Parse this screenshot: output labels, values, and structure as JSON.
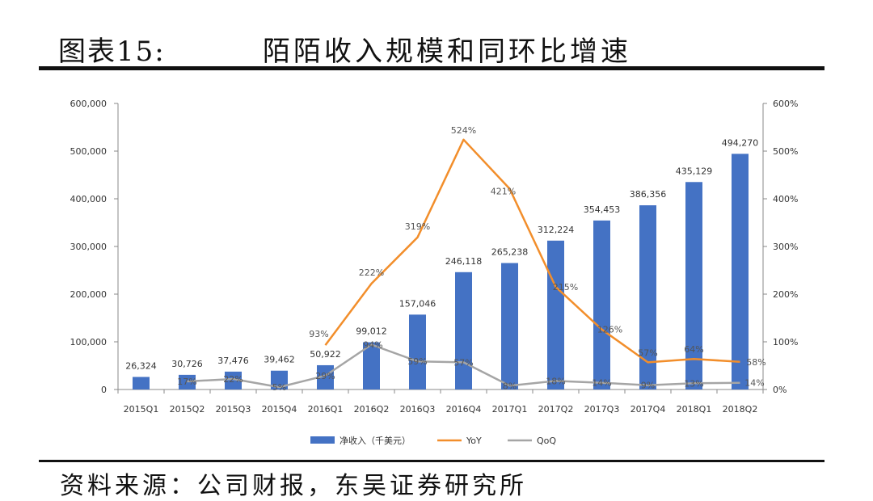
{
  "header": {
    "label": "图表15:",
    "title": "陌陌收入规模和同环比增速"
  },
  "footer": {
    "source": "资料来源：公司财报，东吴证券研究所"
  },
  "colors": {
    "bar": "#4472C4",
    "yoy": "#F28E2B",
    "qoq": "#A5A5A5"
  },
  "chart_data": {
    "type": "bar",
    "title": "陌陌收入规模和同环比增速",
    "categories": [
      "2015Q1",
      "2015Q2",
      "2015Q3",
      "2015Q4",
      "2016Q1",
      "2016Q2",
      "2016Q3",
      "2016Q4",
      "2017Q1",
      "2017Q2",
      "2017Q3",
      "2017Q4",
      "2018Q1",
      "2018Q2"
    ],
    "y_left": {
      "ylim": [
        0,
        600000
      ],
      "ticks": [
        "0",
        "100,000",
        "200,000",
        "300,000",
        "400,000",
        "500,000",
        "600,000"
      ]
    },
    "y_right": {
      "ylim": [
        0,
        600
      ],
      "ticks": [
        "0%",
        "100%",
        "200%",
        "300%",
        "400%",
        "500%",
        "600%"
      ]
    },
    "legend_position": "bottom",
    "grid": false,
    "series": [
      {
        "name": "净收入（千美元）",
        "type": "bar",
        "axis": "left",
        "values": [
          26324,
          30726,
          37476,
          39462,
          50922,
          99012,
          157046,
          246118,
          265238,
          312224,
          354453,
          386356,
          435129,
          494270
        ],
        "labels": [
          "26,324",
          "30,726",
          "37,476",
          "39,462",
          "50,922",
          "99,012",
          "157,046",
          "246,118",
          "265,238",
          "312,224",
          "354,453",
          "386,356",
          "435,129",
          "494,270"
        ]
      },
      {
        "name": "YoY",
        "type": "line",
        "axis": "right",
        "values": [
          null,
          null,
          null,
          null,
          93,
          222,
          319,
          524,
          421,
          215,
          126,
          57,
          64,
          58
        ],
        "labels": [
          "",
          "",
          "",
          "",
          "93%",
          "222%",
          "319%",
          "524%",
          "421%",
          "215%",
          "126%",
          "57%",
          "64%",
          "58%"
        ]
      },
      {
        "name": "QoQ",
        "type": "line",
        "axis": "right",
        "values": [
          null,
          17,
          22,
          5,
          29,
          94,
          59,
          57,
          8,
          18,
          14,
          9,
          13,
          14
        ],
        "labels": [
          "",
          "17%",
          "22%",
          "5%",
          "29%",
          "94%",
          "59%",
          "57%",
          "8%",
          "18%",
          "14%",
          "9%",
          "13%",
          "14%"
        ]
      }
    ]
  }
}
